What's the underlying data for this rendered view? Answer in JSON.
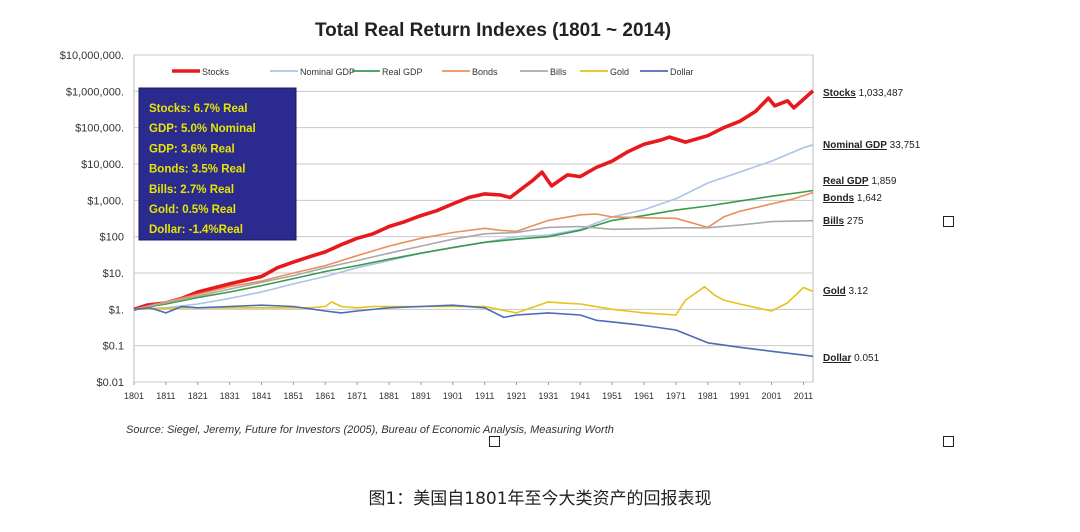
{
  "chart_data": {
    "type": "line",
    "title": "Total Real Return Indexes (1801 ~ 2014)",
    "xlabel": "",
    "ylabel": "",
    "y_scale": "log",
    "ylim": [
      0.01,
      10000000
    ],
    "xlim": [
      1801,
      2014
    ],
    "x_ticks": [
      "1801",
      "1811",
      "1821",
      "1831",
      "1841",
      "1851",
      "1861",
      "1871",
      "1881",
      "1891",
      "1901",
      "1911",
      "1921",
      "1931",
      "1941",
      "1951",
      "1961",
      "1971",
      "1981",
      "1991",
      "2001",
      "2011"
    ],
    "y_ticks": [
      {
        "value": 0.01,
        "label": "$0.01"
      },
      {
        "value": 0.1,
        "label": "$0.1"
      },
      {
        "value": 1,
        "label": "$1."
      },
      {
        "value": 10,
        "label": "$10."
      },
      {
        "value": 100,
        "label": "$100"
      },
      {
        "value": 1000,
        "label": "$1,000."
      },
      {
        "value": 10000,
        "label": "$10,000."
      },
      {
        "value": 100000,
        "label": "$100,000."
      },
      {
        "value": 1000000,
        "label": "$1,000,000."
      },
      {
        "value": 10000000,
        "label": "$10,000,000."
      }
    ],
    "grid": true,
    "legend_position": "top",
    "series": [
      {
        "name": "Stocks",
        "color": "#e8191c",
        "end_label": "Stocks",
        "end_value": "1,033,487",
        "points": [
          [
            1801,
            1
          ],
          [
            1805,
            1.3
          ],
          [
            1811,
            1.5
          ],
          [
            1816,
            2
          ],
          [
            1821,
            3
          ],
          [
            1831,
            5
          ],
          [
            1841,
            8
          ],
          [
            1846,
            14
          ],
          [
            1851,
            20
          ],
          [
            1856,
            28
          ],
          [
            1861,
            38
          ],
          [
            1866,
            60
          ],
          [
            1871,
            90
          ],
          [
            1876,
            120
          ],
          [
            1881,
            190
          ],
          [
            1886,
            260
          ],
          [
            1891,
            380
          ],
          [
            1896,
            520
          ],
          [
            1901,
            800
          ],
          [
            1906,
            1200
          ],
          [
            1911,
            1500
          ],
          [
            1916,
            1400
          ],
          [
            1919,
            1200
          ],
          [
            1926,
            3500
          ],
          [
            1929,
            6000
          ],
          [
            1932,
            2500
          ],
          [
            1937,
            5000
          ],
          [
            1941,
            4500
          ],
          [
            1946,
            8000
          ],
          [
            1951,
            12000
          ],
          [
            1956,
            22000
          ],
          [
            1961,
            35000
          ],
          [
            1966,
            45000
          ],
          [
            1969,
            55000
          ],
          [
            1974,
            40000
          ],
          [
            1981,
            60000
          ],
          [
            1986,
            100000
          ],
          [
            1991,
            150000
          ],
          [
            1996,
            280000
          ],
          [
            2000,
            650000
          ],
          [
            2002,
            400000
          ],
          [
            2006,
            550000
          ],
          [
            2008,
            350000
          ],
          [
            2011,
            600000
          ],
          [
            2014,
            1033487
          ]
        ]
      },
      {
        "name": "Nominal GDP",
        "color": "#a9c4e6",
        "end_label": "Nominal GDP",
        "end_value": "33,751",
        "points": [
          [
            1801,
            1
          ],
          [
            1811,
            1.1
          ],
          [
            1821,
            1.4
          ],
          [
            1831,
            2
          ],
          [
            1841,
            3
          ],
          [
            1851,
            5
          ],
          [
            1861,
            8
          ],
          [
            1871,
            14
          ],
          [
            1881,
            22
          ],
          [
            1891,
            35
          ],
          [
            1901,
            50
          ],
          [
            1911,
            70
          ],
          [
            1921,
            100
          ],
          [
            1931,
            110
          ],
          [
            1941,
            160
          ],
          [
            1951,
            350
          ],
          [
            1961,
            550
          ],
          [
            1971,
            1100
          ],
          [
            1981,
            3000
          ],
          [
            1991,
            6000
          ],
          [
            2001,
            12000
          ],
          [
            2011,
            28000
          ],
          [
            2014,
            33751
          ]
        ]
      },
      {
        "name": "Real GDP",
        "color": "#3a9a4a",
        "end_label": "Real GDP",
        "end_value": "1,859",
        "points": [
          [
            1801,
            1
          ],
          [
            1811,
            1.4
          ],
          [
            1821,
            2.1
          ],
          [
            1831,
            3
          ],
          [
            1841,
            4.5
          ],
          [
            1851,
            7
          ],
          [
            1861,
            11
          ],
          [
            1871,
            16
          ],
          [
            1881,
            24
          ],
          [
            1891,
            35
          ],
          [
            1901,
            50
          ],
          [
            1911,
            70
          ],
          [
            1921,
            85
          ],
          [
            1931,
            100
          ],
          [
            1941,
            150
          ],
          [
            1951,
            280
          ],
          [
            1961,
            380
          ],
          [
            1971,
            540
          ],
          [
            1981,
            700
          ],
          [
            1991,
            950
          ],
          [
            2001,
            1300
          ],
          [
            2011,
            1700
          ],
          [
            2014,
            1859
          ]
        ]
      },
      {
        "name": "Bonds",
        "color": "#e9905a",
        "end_label": "Bonds",
        "end_value": "1,642",
        "points": [
          [
            1801,
            1
          ],
          [
            1811,
            1.6
          ],
          [
            1821,
            2.6
          ],
          [
            1831,
            4.2
          ],
          [
            1841,
            6
          ],
          [
            1851,
            10
          ],
          [
            1861,
            16
          ],
          [
            1871,
            30
          ],
          [
            1881,
            55
          ],
          [
            1891,
            90
          ],
          [
            1901,
            130
          ],
          [
            1911,
            170
          ],
          [
            1916,
            150
          ],
          [
            1921,
            140
          ],
          [
            1931,
            280
          ],
          [
            1941,
            400
          ],
          [
            1946,
            420
          ],
          [
            1951,
            350
          ],
          [
            1961,
            330
          ],
          [
            1971,
            320
          ],
          [
            1981,
            180
          ],
          [
            1986,
            350
          ],
          [
            1991,
            500
          ],
          [
            2001,
            800
          ],
          [
            2008,
            1100
          ],
          [
            2014,
            1642
          ]
        ]
      },
      {
        "name": "Bills",
        "color": "#a9a9a9",
        "end_label": "Bills",
        "end_value": "275",
        "points": [
          [
            1801,
            1
          ],
          [
            1811,
            1.5
          ],
          [
            1821,
            2.3
          ],
          [
            1831,
            3.6
          ],
          [
            1841,
            5.5
          ],
          [
            1851,
            8.5
          ],
          [
            1861,
            14
          ],
          [
            1871,
            22
          ],
          [
            1881,
            35
          ],
          [
            1891,
            55
          ],
          [
            1901,
            85
          ],
          [
            1911,
            120
          ],
          [
            1921,
            130
          ],
          [
            1931,
            180
          ],
          [
            1941,
            190
          ],
          [
            1951,
            160
          ],
          [
            1961,
            165
          ],
          [
            1971,
            175
          ],
          [
            1981,
            175
          ],
          [
            1991,
            210
          ],
          [
            2001,
            260
          ],
          [
            2014,
            275
          ]
        ]
      },
      {
        "name": "Gold",
        "color": "#e6c21a",
        "end_label": "Gold",
        "end_value": "3.12",
        "points": [
          [
            1801,
            1
          ],
          [
            1816,
            1.1
          ],
          [
            1831,
            1.1
          ],
          [
            1856,
            1.1
          ],
          [
            1861,
            1.2
          ],
          [
            1863,
            1.6
          ],
          [
            1866,
            1.2
          ],
          [
            1871,
            1.1
          ],
          [
            1876,
            1.2
          ],
          [
            1881,
            1.2
          ],
          [
            1901,
            1.2
          ],
          [
            1911,
            1.2
          ],
          [
            1921,
            0.8
          ],
          [
            1931,
            1.6
          ],
          [
            1935,
            1.5
          ],
          [
            1941,
            1.4
          ],
          [
            1951,
            1
          ],
          [
            1961,
            0.8
          ],
          [
            1971,
            0.7
          ],
          [
            1974,
            1.8
          ],
          [
            1980,
            4.2
          ],
          [
            1983,
            2.5
          ],
          [
            1986,
            1.8
          ],
          [
            1991,
            1.4
          ],
          [
            2001,
            0.9
          ],
          [
            2006,
            1.5
          ],
          [
            2011,
            4
          ],
          [
            2014,
            3.12
          ]
        ]
      },
      {
        "name": "Dollar",
        "color": "#4a6cb8",
        "end_label": "Dollar",
        "end_value": "0.051",
        "points": [
          [
            1801,
            1
          ],
          [
            1806,
            1.1
          ],
          [
            1811,
            0.8
          ],
          [
            1816,
            1.2
          ],
          [
            1821,
            1.1
          ],
          [
            1831,
            1.2
          ],
          [
            1841,
            1.3
          ],
          [
            1851,
            1.2
          ],
          [
            1861,
            0.9
          ],
          [
            1866,
            0.8
          ],
          [
            1871,
            0.9
          ],
          [
            1881,
            1.1
          ],
          [
            1891,
            1.2
          ],
          [
            1901,
            1.3
          ],
          [
            1911,
            1.1
          ],
          [
            1917,
            0.6
          ],
          [
            1921,
            0.7
          ],
          [
            1931,
            0.8
          ],
          [
            1941,
            0.7
          ],
          [
            1946,
            0.5
          ],
          [
            1951,
            0.45
          ],
          [
            1961,
            0.36
          ],
          [
            1971,
            0.27
          ],
          [
            1981,
            0.12
          ],
          [
            1991,
            0.09
          ],
          [
            2001,
            0.07
          ],
          [
            2011,
            0.055
          ],
          [
            2014,
            0.051
          ]
        ]
      }
    ],
    "annotations": [
      {
        "text": "Stocks: 6.7% Real",
        "color": "#e6e600"
      },
      {
        "text": "GDP: 5.0% Nominal",
        "color": "#e6e600"
      },
      {
        "text": "GDP: 3.6% Real",
        "color": "#e6e600"
      },
      {
        "text": "Bonds: 3.5% Real",
        "color": "#e6e600"
      },
      {
        "text": "Bills:   2.7% Real",
        "color": "#e6e600"
      },
      {
        "text": "Gold:   0.5% Real",
        "color": "#e6e600"
      },
      {
        "text": "Dollar: -1.4%Real",
        "color": "#e6e600"
      }
    ],
    "annotation_box_color": "#2b2b8f",
    "source": "Source: Siegel, Jeremy, Future for Investors (2005), Bureau of Economic Analysis, Measuring Worth"
  },
  "caption": "图1：美国自1801年至今大类资产的回报表现"
}
